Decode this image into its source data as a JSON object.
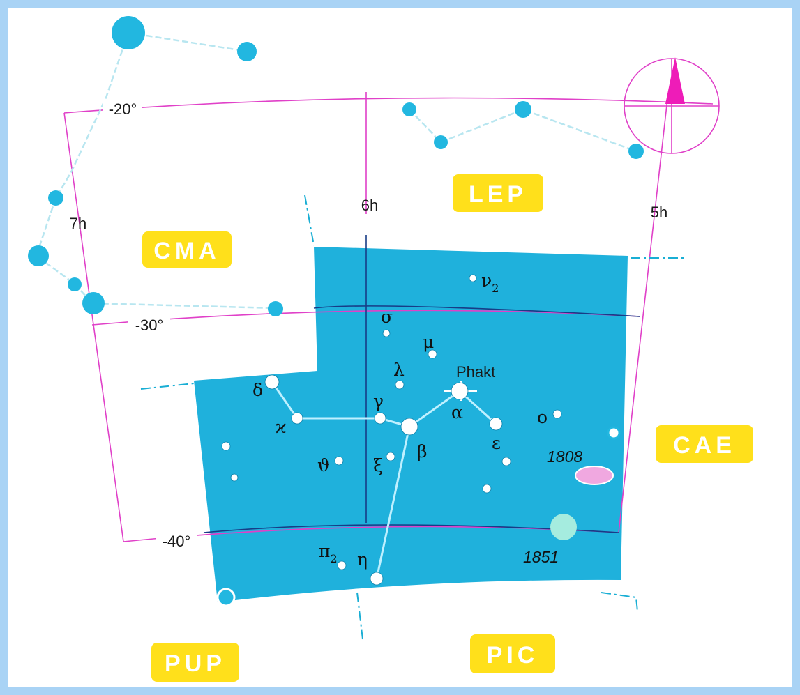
{
  "constellations": {
    "lep": "LEP",
    "cma": "CMA",
    "cae": "CAE",
    "pup": "PUP",
    "pic": "PIC"
  },
  "grid": {
    "ra_5h": "5h",
    "ra_6h": "6h",
    "ra_7h": "7h",
    "dec_20": "-20°",
    "dec_30": "-30°",
    "dec_40": "-40°"
  },
  "stars": {
    "nu2": "ν",
    "nu2_sub": "2",
    "sigma": "σ",
    "mu": "μ",
    "lambda": "λ",
    "gamma": "γ",
    "alpha": "α",
    "alpha_name": "Phakt",
    "beta": "β",
    "delta": "δ",
    "kappa": "ϰ",
    "epsilon": "ε",
    "omicron": "o",
    "theta": "ϑ",
    "xi": "ξ",
    "eta": "η",
    "pi2": "π",
    "pi2_sub": "2"
  },
  "objects": {
    "obj_1808": "1808",
    "obj_1851": "1851"
  },
  "colors": {
    "constellation_fill": "#1fb1dc",
    "grid_line": "#e040c8",
    "label_bg": "#ffe01b",
    "star": "#ffffff",
    "neighbor_star": "#22b7e0",
    "compass_arrow": "#ee1cb8"
  }
}
